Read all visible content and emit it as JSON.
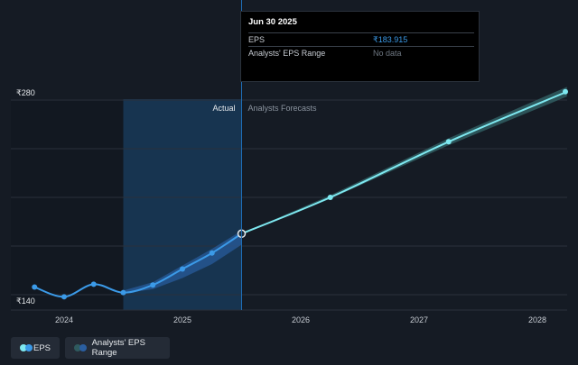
{
  "tooltip": {
    "date": "Jun 30 2025",
    "eps_label": "EPS",
    "eps_value": "₹183.915",
    "range_label": "Analysts' EPS Range",
    "range_value": "No data"
  },
  "legend": {
    "eps_label": "EPS",
    "range_label": "Analysts' EPS Range"
  },
  "colors": {
    "background": "#151b24",
    "eps_line": "#3b9ae8",
    "forecast_line": "#7ee8f0",
    "forecast_band": "#2f5a5e",
    "past_band": "#2a5ea0",
    "actual_region": "#173450"
  },
  "chart_data": {
    "type": "line",
    "y_axis": {
      "min": 140,
      "max": 280,
      "tick_labels": [
        "₹280",
        "₹140"
      ],
      "ticks": [
        280,
        140
      ]
    },
    "x_axis": {
      "tick_labels": [
        "2024",
        "2025",
        "2026",
        "2027",
        "2028"
      ],
      "ticks": [
        2024,
        2025,
        2026,
        2027,
        2028
      ]
    },
    "section_labels": {
      "actual": "Actual",
      "forecast": "Analysts Forecasts"
    },
    "divider_date": 2025.5,
    "actual_region_start": 2024.5,
    "series": [
      {
        "key": "eps",
        "points": [
          [
            2023.75,
            145.5
          ],
          [
            2024.0,
            138.5
          ],
          [
            2024.25,
            147.5
          ],
          [
            2024.5,
            141.5
          ],
          [
            2024.75,
            147.0
          ],
          [
            2025.0,
            158.5
          ],
          [
            2025.25,
            170.0
          ],
          [
            2025.5,
            183.9
          ]
        ]
      },
      {
        "key": "forecast",
        "points": [
          [
            2025.5,
            183.9
          ],
          [
            2026.25,
            210.0
          ],
          [
            2027.25,
            250.0
          ],
          [
            2028.25,
            286.0
          ]
        ],
        "band_low": [
          [
            2025.5,
            183.9
          ],
          [
            2026.25,
            209.0
          ],
          [
            2027.25,
            247.5
          ],
          [
            2028.25,
            282.5
          ]
        ],
        "band_high": [
          [
            2025.5,
            183.9
          ],
          [
            2026.25,
            211.5
          ],
          [
            2027.25,
            252.5
          ],
          [
            2028.25,
            289.5
          ]
        ]
      },
      {
        "key": "past_range",
        "band_low": [
          [
            2024.5,
            141.0
          ],
          [
            2024.75,
            144.0
          ],
          [
            2025.0,
            152.0
          ],
          [
            2025.25,
            162.0
          ],
          [
            2025.5,
            176.0
          ]
        ],
        "band_high": [
          [
            2024.5,
            143.0
          ],
          [
            2024.75,
            149.0
          ],
          [
            2025.0,
            161.0
          ],
          [
            2025.25,
            173.0
          ],
          [
            2025.5,
            186.0
          ]
        ]
      }
    ]
  }
}
